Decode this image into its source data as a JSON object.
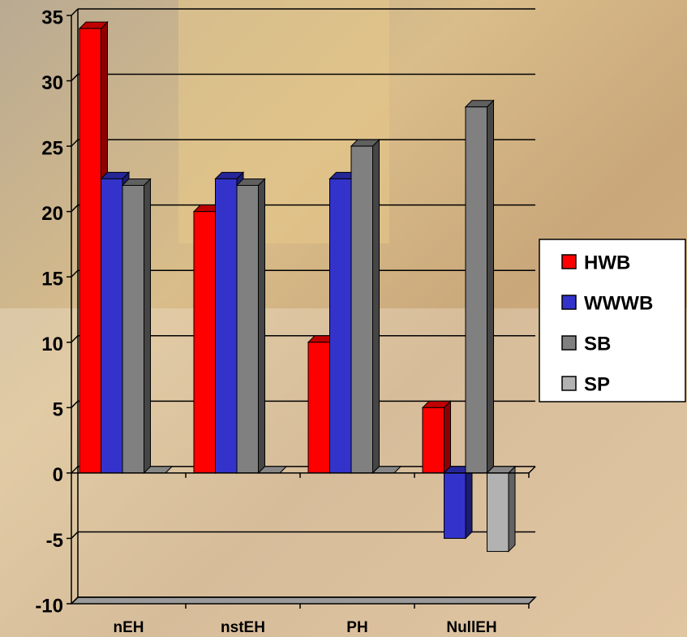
{
  "chart_data": {
    "type": "bar3d",
    "categories": [
      "nEH",
      "nstEH",
      "PH",
      "NullEH"
    ],
    "series": [
      {
        "name": "HWB",
        "color": "#ff0000",
        "values": [
          34,
          20,
          10,
          5
        ]
      },
      {
        "name": "WWWB",
        "color": "#3333cc",
        "values": [
          22.5,
          22.5,
          22.5,
          -5
        ]
      },
      {
        "name": "SB",
        "color": "#808080",
        "values": [
          22,
          22,
          25,
          28
        ]
      },
      {
        "name": "SP",
        "color": "#b2b2b2",
        "values": [
          0,
          0,
          0,
          -6
        ]
      }
    ],
    "ylim": [
      -10,
      35
    ],
    "yticks": [
      -10,
      -5,
      0,
      5,
      10,
      15,
      20,
      25,
      30,
      35
    ],
    "grid": true,
    "legend": "right"
  }
}
